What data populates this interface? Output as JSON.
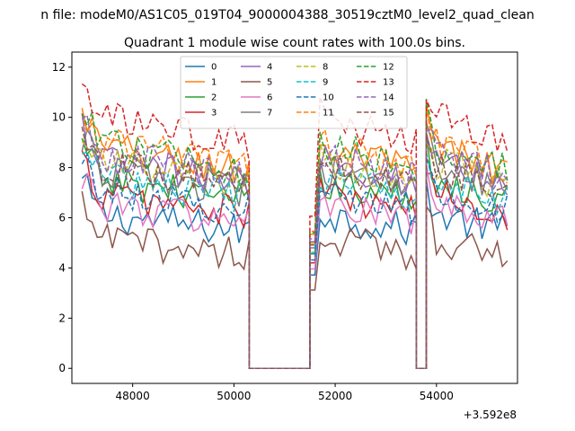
{
  "figure": {
    "suptitle": "n file: modeM0/AS1C05_019T04_9000004388_30519cztM0_level2_quad_clean"
  },
  "chart_data": {
    "type": "line",
    "title": "Quadrant 1 module wise count rates with 100.0s bins.",
    "xlabel": "",
    "ylabel": "",
    "x_offset_label": "+3.592e8",
    "xlim": [
      46800,
      55600
    ],
    "ylim": [
      -0.6,
      12.6
    ],
    "x_ticks": [
      48000,
      50000,
      52000,
      54000
    ],
    "x_tick_labels": [
      "48000",
      "50000",
      "52000",
      "54000"
    ],
    "y_ticks": [
      0,
      2,
      4,
      6,
      8,
      10,
      12
    ],
    "y_tick_labels": [
      "0",
      "2",
      "4",
      "6",
      "8",
      "10",
      "12"
    ],
    "grid": false,
    "legend_position": "top-center",
    "legend_columns": 4,
    "segments": [
      {
        "start": 47000,
        "end": 50300,
        "kind": "active"
      },
      {
        "start": 50300,
        "end": 51500,
        "kind": "gap"
      },
      {
        "start": 51500,
        "end": 53600,
        "kind": "active"
      },
      {
        "start": 53600,
        "end": 53800,
        "kind": "gap"
      },
      {
        "start": 53800,
        "end": 55400,
        "kind": "active"
      }
    ],
    "series": [
      {
        "name": "0",
        "color": "#1f77b4",
        "dash": "solid",
        "level": 6.2
      },
      {
        "name": "1",
        "color": "#ff7f0e",
        "dash": "solid",
        "level": 8.9
      },
      {
        "name": "2",
        "color": "#2ca02c",
        "dash": "solid",
        "level": 7.6
      },
      {
        "name": "3",
        "color": "#d62728",
        "dash": "solid",
        "level": 7.0
      },
      {
        "name": "4",
        "color": "#9467bd",
        "dash": "solid",
        "level": 8.4
      },
      {
        "name": "5",
        "color": "#8c564b",
        "dash": "solid",
        "level": 5.2
      },
      {
        "name": "6",
        "color": "#e377c2",
        "dash": "solid",
        "level": 6.6
      },
      {
        "name": "7",
        "color": "#7f7f7f",
        "dash": "solid",
        "level": 8.0
      },
      {
        "name": "8",
        "color": "#bcbd22",
        "dash": "dashed",
        "level": 8.3
      },
      {
        "name": "9",
        "color": "#17becf",
        "dash": "dashed",
        "level": 7.7
      },
      {
        "name": "10",
        "color": "#1f77b4",
        "dash": "dashed",
        "level": 7.2
      },
      {
        "name": "11",
        "color": "#ff7f0e",
        "dash": "dashed",
        "level": 9.1
      },
      {
        "name": "12",
        "color": "#2ca02c",
        "dash": "dashed",
        "level": 9.0
      },
      {
        "name": "13",
        "color": "#d62728",
        "dash": "dashed",
        "level": 10.1
      },
      {
        "name": "14",
        "color": "#9467bd",
        "dash": "dashed",
        "level": 8.6
      },
      {
        "name": "15",
        "color": "#8c564b",
        "dash": "dashed",
        "level": 8.2
      }
    ]
  }
}
